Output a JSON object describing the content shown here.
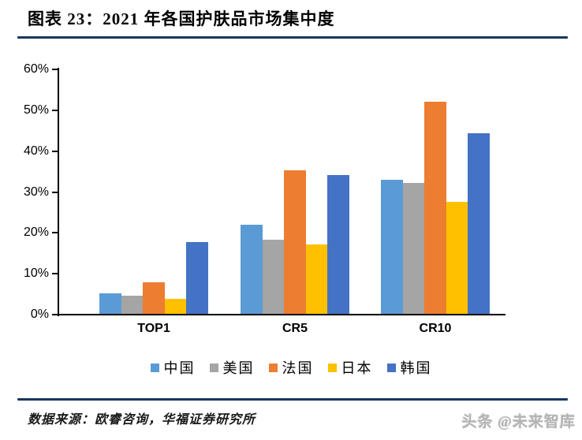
{
  "header": {
    "title": "图表 23：2021 年各国护肤品市场集中度"
  },
  "footer": {
    "source": "数据来源：欧睿咨询，华福证券研究所",
    "watermark": "头条 @未来智库"
  },
  "colors": {
    "divider": "#17375E",
    "axis": "#000000"
  },
  "chart_data": {
    "type": "bar",
    "title": "2021 年各国护肤品市场集中度",
    "categories": [
      "TOP1",
      "CR5",
      "CR10"
    ],
    "series": [
      {
        "name": "中国",
        "color": "#5B9BD5",
        "values": [
          5.2,
          22.0,
          33.0
        ]
      },
      {
        "name": "美国",
        "color": "#A5A5A5",
        "values": [
          4.6,
          18.4,
          32.3
        ]
      },
      {
        "name": "法国",
        "color": "#ED7D31",
        "values": [
          8.0,
          35.4,
          52.0
        ]
      },
      {
        "name": "日本",
        "color": "#FFC000",
        "values": [
          3.9,
          17.1,
          27.6
        ]
      },
      {
        "name": "韩国",
        "color": "#4472C4",
        "values": [
          17.8,
          34.2,
          44.3
        ]
      }
    ],
    "xlabel": "",
    "ylabel": "",
    "ylim": [
      0,
      60
    ],
    "ytick_step": 10,
    "ytick_labels": [
      "0%",
      "10%",
      "20%",
      "30%",
      "40%",
      "50%",
      "60%"
    ],
    "grid": false,
    "legend_position": "bottom"
  }
}
